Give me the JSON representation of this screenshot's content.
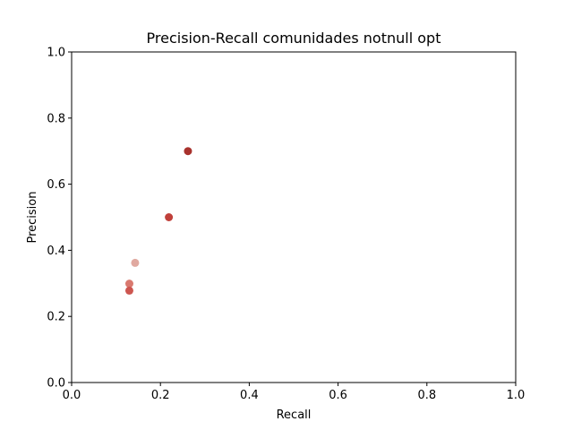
{
  "chart_data": {
    "type": "scatter",
    "title": "Precision-Recall comunidades notnull opt",
    "xlabel": "Recall",
    "ylabel": "Precision",
    "xlim": [
      0.0,
      1.0
    ],
    "ylim": [
      0.0,
      1.0
    ],
    "xticks": [
      "0.0",
      "0.2",
      "0.4",
      "0.6",
      "0.8",
      "1.0"
    ],
    "yticks": [
      "0.0",
      "0.2",
      "0.4",
      "0.6",
      "0.8",
      "1.0"
    ],
    "grid": false,
    "points": [
      {
        "x": 0.262,
        "y": 0.7,
        "color": "#a8322d"
      },
      {
        "x": 0.219,
        "y": 0.5,
        "color": "#c0403a"
      },
      {
        "x": 0.143,
        "y": 0.362,
        "color": "#e0a9a0"
      },
      {
        "x": 0.13,
        "y": 0.299,
        "color": "#d9796f"
      },
      {
        "x": 0.13,
        "y": 0.278,
        "color": "#cd5650"
      }
    ]
  }
}
